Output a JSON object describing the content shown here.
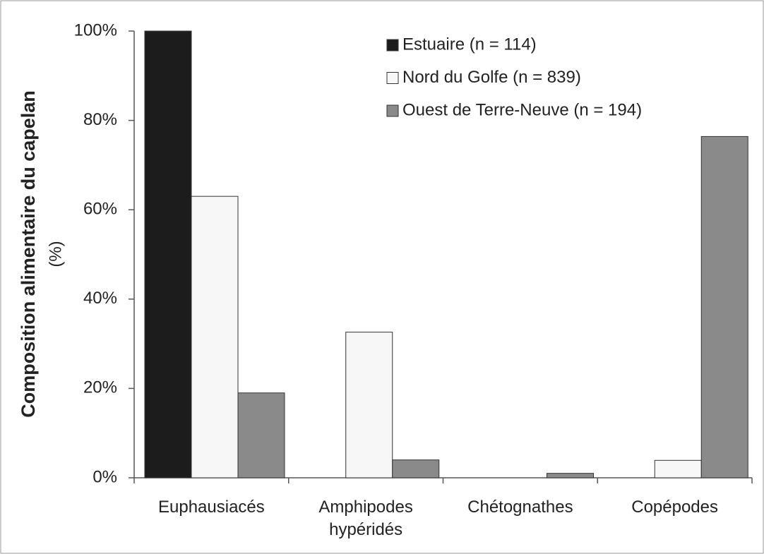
{
  "chart_data": {
    "type": "bar",
    "ylabel": "Composition alimentaire du capelan",
    "ylabel_unit": "(%)",
    "categories": [
      "Euphausiacés",
      "Amphipodes hypéridés",
      "Chétognathes",
      "Copépodes"
    ],
    "series": [
      {
        "name": "Estuaire (n = 114)",
        "color": "#1c1c1c",
        "values": [
          100,
          0,
          0,
          0
        ]
      },
      {
        "name": "Nord du Golfe (n = 839)",
        "color": "#f7f7f7",
        "values": [
          63,
          32.6,
          0,
          3.9
        ]
      },
      {
        "name": "Ouest de Terre-Neuve (n = 194)",
        "color": "#8a8a8a",
        "values": [
          19,
          4,
          1,
          76.4
        ]
      }
    ],
    "ylim": [
      0,
      100
    ],
    "yticks": [
      {
        "value": 0,
        "label": "0%"
      },
      {
        "value": 20,
        "label": "20%"
      },
      {
        "value": 40,
        "label": "40%"
      },
      {
        "value": 60,
        "label": "60%"
      },
      {
        "value": 80,
        "label": "80%"
      },
      {
        "value": 100,
        "label": "100%"
      }
    ],
    "grid": false,
    "legend": "upper right"
  }
}
